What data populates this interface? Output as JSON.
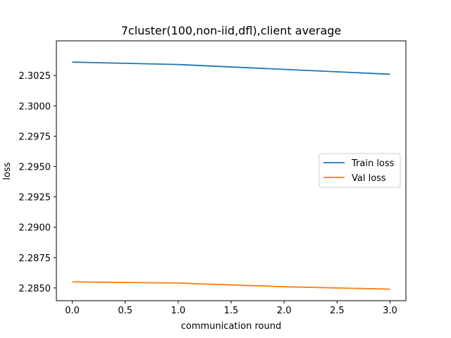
{
  "chart_data": {
    "type": "line",
    "title": "7cluster(100,non-iid,dfl),client average",
    "xlabel": "communication round",
    "ylabel": "loss",
    "x": [
      0,
      1,
      2,
      3
    ],
    "xlim": [
      -0.15,
      3.15
    ],
    "ylim": [
      2.28395,
      2.30535
    ],
    "xticks": [
      "0.0",
      "0.5",
      "1.0",
      "1.5",
      "2.0",
      "2.5",
      "3.0"
    ],
    "yticks": [
      "2.2850",
      "2.2875",
      "2.2900",
      "2.2925",
      "2.2950",
      "2.2975",
      "2.3000",
      "2.3025"
    ],
    "grid": false,
    "legend_position": "center-right",
    "series": [
      {
        "name": "Train loss",
        "color": "#1f77b4",
        "values": [
          2.3036,
          2.3034,
          2.303,
          2.3026
        ]
      },
      {
        "name": "Val loss",
        "color": "#ff7f0e",
        "values": [
          2.2855,
          2.2854,
          2.2851,
          2.2849
        ]
      }
    ]
  }
}
